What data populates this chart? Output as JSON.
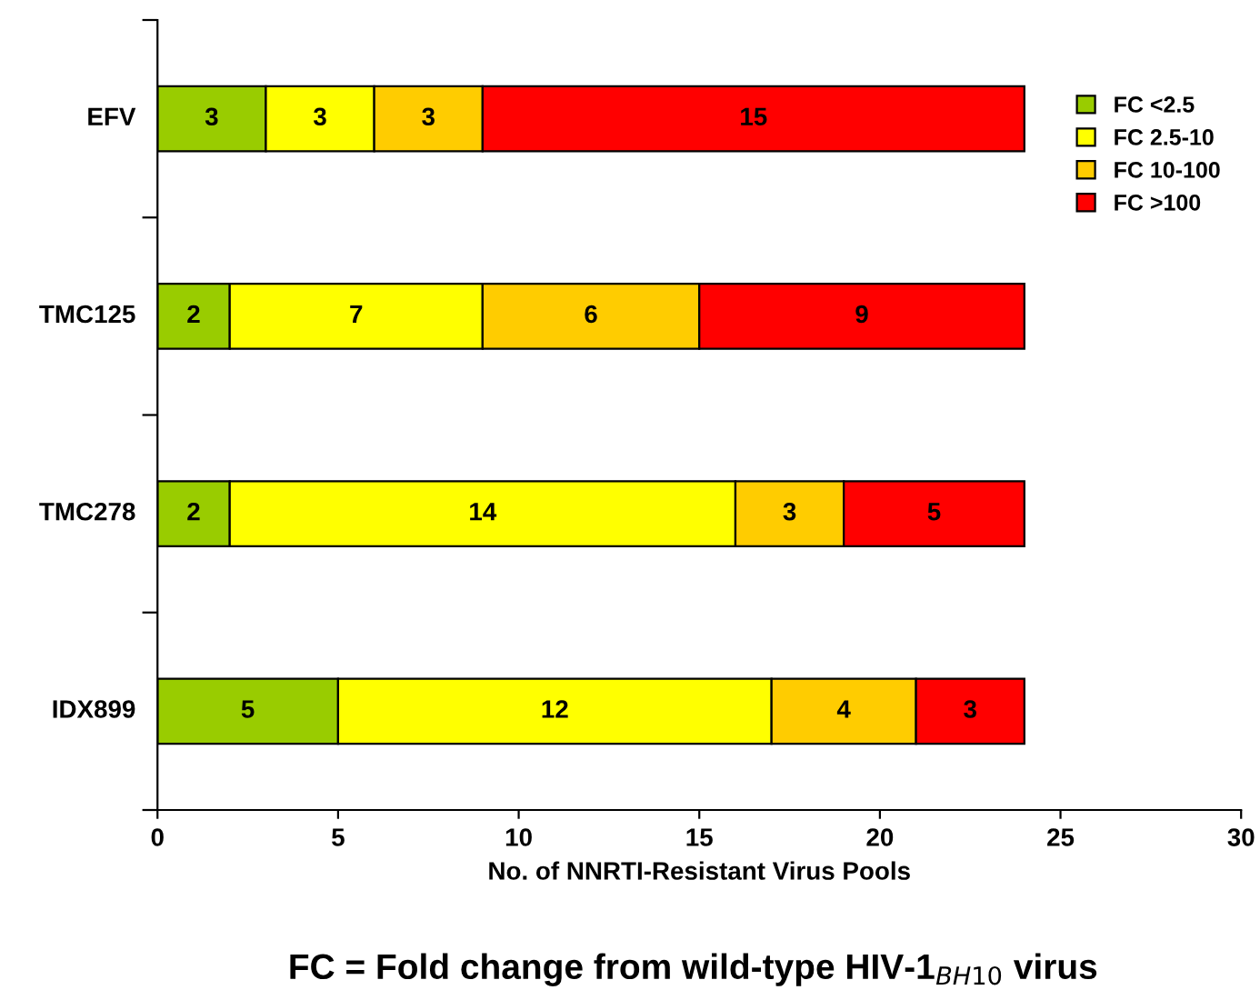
{
  "chart_data": {
    "type": "bar",
    "orientation": "horizontal",
    "stacked": true,
    "categories": [
      "EFV",
      "TMC125",
      "TMC278",
      "IDX899"
    ],
    "series": [
      {
        "name": "FC <2.5",
        "color": "#99cc00",
        "values": [
          3,
          2,
          2,
          5
        ]
      },
      {
        "name": "FC 2.5-10",
        "color": "#ffff00",
        "values": [
          3,
          7,
          14,
          12
        ]
      },
      {
        "name": "FC 10-100",
        "color": "#ffcc00",
        "values": [
          3,
          6,
          3,
          4
        ]
      },
      {
        "name": "FC >100",
        "color": "#ff0000",
        "values": [
          15,
          9,
          5,
          3
        ]
      }
    ],
    "xlim": [
      0,
      30
    ],
    "xticks": [
      0,
      5,
      10,
      15,
      20,
      25,
      30
    ],
    "xlabel": "No. of NNRTI-Resistant Virus Pools",
    "annotations": [
      "FC = Fold change from wild-type HIV-1$_{BH10}$ virus"
    ],
    "data_labels": true,
    "legend": "top right",
    "grid": false
  }
}
